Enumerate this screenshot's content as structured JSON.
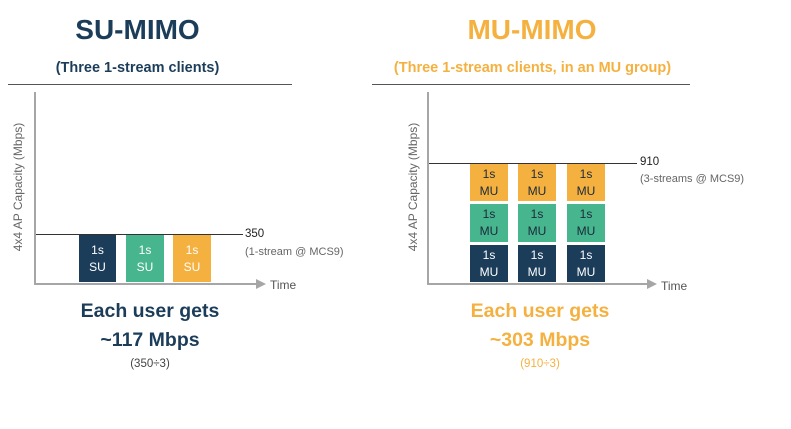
{
  "colors": {
    "navy": "#1c3d5a",
    "green": "#47b58e",
    "orange": "#f5b140",
    "axis": "#a6a6a6",
    "rule": "#555555"
  },
  "su": {
    "title": "SU-MIMO",
    "subtitle": "(Three 1-stream clients)",
    "y_axis_label": "4x4 AP Capacity (Mbps)",
    "capacity_value": "350",
    "capacity_note": "(1-stream @ MCS9)",
    "time_label": "Time",
    "bars": [
      {
        "line1": "1s",
        "line2": "SU",
        "color": "navy"
      },
      {
        "line1": "1s",
        "line2": "SU",
        "color": "green"
      },
      {
        "line1": "1s",
        "line2": "SU",
        "color": "orange"
      }
    ],
    "summary_line1": "Each user gets",
    "summary_line2": "~117 Mbps",
    "summary_note": "(350÷3)"
  },
  "mu": {
    "title": "MU-MIMO",
    "subtitle": "(Three 1-stream clients, in an MU group)",
    "y_axis_label": "4x4 AP Capacity (Mbps)",
    "capacity_value": "910",
    "capacity_note": "(3-streams @ MCS9)",
    "time_label": "Time",
    "segment": {
      "line1": "1s",
      "line2": "MU"
    },
    "summary_line1": "Each user gets",
    "summary_line2": "~303 Mbps",
    "summary_note": "(910÷3)"
  }
}
